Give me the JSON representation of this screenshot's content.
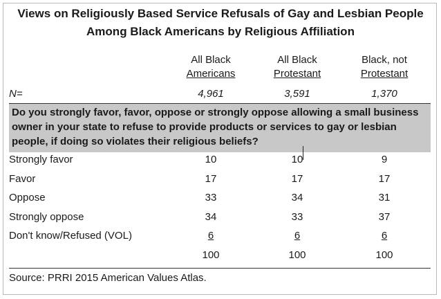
{
  "chart_data": {
    "type": "table",
    "title": "Views on Religiously Based Service Refusals of Gay and Lesbian People Among Black Americans by Religious Affiliation",
    "columns": [
      {
        "line1": "All Black",
        "line2": "Americans",
        "n": "4,961"
      },
      {
        "line1": "All Black",
        "line2": "Protestant",
        "n": "3,591"
      },
      {
        "line1": "Black, not",
        "line2": "Protestant",
        "n": "1,370"
      }
    ],
    "n_label": "N=",
    "question": "Do you strongly favor, favor, oppose or strongly oppose allowing a small business owner in your state to refuse to provide products or services to gay or lesbian people, if doing so violates their religious beliefs?",
    "rows": [
      {
        "label": "Strongly favor",
        "values": [
          "10",
          "10",
          "9"
        ]
      },
      {
        "label": "Favor",
        "values": [
          "17",
          "17",
          "17"
        ]
      },
      {
        "label": "Oppose",
        "values": [
          "33",
          "34",
          "31"
        ]
      },
      {
        "label": "Strongly oppose",
        "values": [
          "34",
          "33",
          "37"
        ]
      },
      {
        "label": "Don't know/Refused (VOL)",
        "values": [
          "6",
          "6",
          "6"
        ]
      },
      {
        "label": "",
        "values": [
          "100",
          "100",
          "100"
        ]
      }
    ],
    "source": "Source: PRRI 2015 American Values Atlas."
  }
}
